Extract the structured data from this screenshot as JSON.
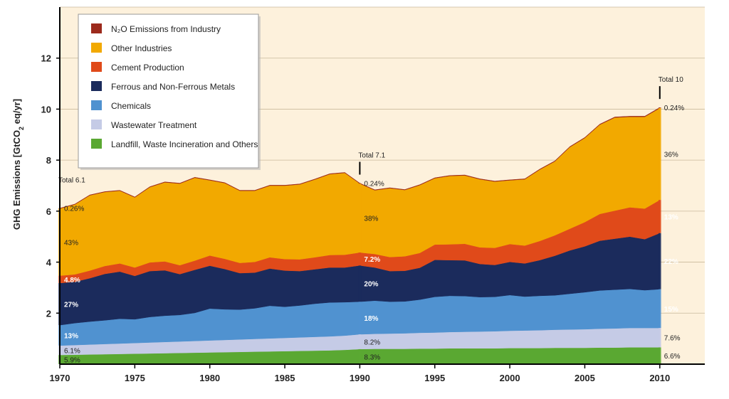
{
  "chart_data": {
    "type": "area",
    "stacked": true,
    "ylabel_prefix": "GHG Emissions [GtCO",
    "ylabel_sub": "2",
    "ylabel_suffix": " eq/yr]",
    "xlim": [
      1970,
      2013
    ],
    "ylim": [
      0,
      14
    ],
    "x_ticks": [
      1970,
      1975,
      1980,
      1985,
      1990,
      1995,
      2000,
      2005,
      2010
    ],
    "y_ticks": [
      2,
      4,
      6,
      8,
      10,
      12
    ],
    "legend_position": "top-left",
    "x": [
      1970,
      1971,
      1972,
      1973,
      1974,
      1975,
      1976,
      1977,
      1978,
      1979,
      1980,
      1981,
      1982,
      1983,
      1984,
      1985,
      1986,
      1987,
      1988,
      1989,
      1990,
      1991,
      1992,
      1993,
      1994,
      1995,
      1996,
      1997,
      1998,
      1999,
      2000,
      2001,
      2002,
      2003,
      2004,
      2005,
      2006,
      2007,
      2008,
      2009,
      2010
    ],
    "series": [
      {
        "name": "Landfill, Waste Incineration and Others",
        "color": "#5aa832",
        "values": [
          0.36,
          0.37,
          0.38,
          0.39,
          0.4,
          0.41,
          0.42,
          0.43,
          0.44,
          0.45,
          0.46,
          0.47,
          0.48,
          0.49,
          0.5,
          0.51,
          0.52,
          0.53,
          0.54,
          0.56,
          0.59,
          0.6,
          0.6,
          0.6,
          0.61,
          0.61,
          0.62,
          0.62,
          0.62,
          0.62,
          0.63,
          0.63,
          0.63,
          0.64,
          0.64,
          0.64,
          0.65,
          0.65,
          0.66,
          0.66,
          0.66
        ]
      },
      {
        "name": "Wastewater Treatment",
        "color": "#c5cbe6",
        "values": [
          0.37,
          0.38,
          0.39,
          0.4,
          0.41,
          0.42,
          0.43,
          0.44,
          0.45,
          0.46,
          0.47,
          0.48,
          0.49,
          0.5,
          0.51,
          0.52,
          0.53,
          0.54,
          0.55,
          0.56,
          0.58,
          0.59,
          0.6,
          0.61,
          0.62,
          0.63,
          0.64,
          0.65,
          0.66,
          0.67,
          0.68,
          0.69,
          0.7,
          0.71,
          0.72,
          0.73,
          0.74,
          0.75,
          0.76,
          0.76,
          0.76
        ]
      },
      {
        "name": "Chemicals",
        "color": "#5092d0",
        "values": [
          0.8,
          0.86,
          0.9,
          0.93,
          0.97,
          0.93,
          1.0,
          1.03,
          1.04,
          1.1,
          1.25,
          1.2,
          1.17,
          1.2,
          1.28,
          1.22,
          1.25,
          1.3,
          1.33,
          1.31,
          1.28,
          1.3,
          1.25,
          1.25,
          1.3,
          1.4,
          1.42,
          1.4,
          1.35,
          1.35,
          1.4,
          1.33,
          1.35,
          1.35,
          1.4,
          1.45,
          1.5,
          1.52,
          1.53,
          1.48,
          1.52
        ]
      },
      {
        "name": "Ferrous and Non-Ferrous Metals",
        "color": "#1b2b5c",
        "values": [
          1.65,
          1.62,
          1.7,
          1.82,
          1.85,
          1.7,
          1.8,
          1.78,
          1.6,
          1.69,
          1.68,
          1.58,
          1.43,
          1.4,
          1.46,
          1.42,
          1.35,
          1.35,
          1.37,
          1.36,
          1.42,
          1.3,
          1.2,
          1.2,
          1.25,
          1.45,
          1.4,
          1.4,
          1.3,
          1.25,
          1.3,
          1.3,
          1.4,
          1.55,
          1.7,
          1.8,
          1.95,
          2.0,
          2.05,
          2.0,
          2.2
        ]
      },
      {
        "name": "Cement Production",
        "color": "#e04a1a",
        "values": [
          0.29,
          0.29,
          0.3,
          0.31,
          0.32,
          0.33,
          0.34,
          0.35,
          0.35,
          0.36,
          0.4,
          0.4,
          0.4,
          0.42,
          0.44,
          0.45,
          0.46,
          0.47,
          0.49,
          0.5,
          0.51,
          0.53,
          0.55,
          0.57,
          0.58,
          0.6,
          0.62,
          0.65,
          0.65,
          0.67,
          0.7,
          0.7,
          0.75,
          0.8,
          0.85,
          0.95,
          1.05,
          1.1,
          1.15,
          1.2,
          1.3
        ]
      },
      {
        "name": "Other Industries",
        "color": "#f2a900",
        "values": [
          2.63,
          2.74,
          2.95,
          2.9,
          2.85,
          2.75,
          2.95,
          3.1,
          3.2,
          3.25,
          2.95,
          2.97,
          2.83,
          2.79,
          2.81,
          2.88,
          2.94,
          3.05,
          3.17,
          3.21,
          2.7,
          2.5,
          2.7,
          2.6,
          2.66,
          2.6,
          2.68,
          2.68,
          2.67,
          2.6,
          2.5,
          2.6,
          2.8,
          2.9,
          3.2,
          3.3,
          3.5,
          3.65,
          3.55,
          3.6,
          3.6
        ]
      },
      {
        "name": "N₂O Emissions from Industry",
        "color": "#9c2a1c",
        "values": [
          0.016,
          0.016,
          0.016,
          0.016,
          0.016,
          0.016,
          0.017,
          0.017,
          0.017,
          0.017,
          0.017,
          0.017,
          0.017,
          0.017,
          0.017,
          0.017,
          0.017,
          0.017,
          0.017,
          0.017,
          0.017,
          0.017,
          0.017,
          0.017,
          0.018,
          0.018,
          0.018,
          0.018,
          0.018,
          0.018,
          0.018,
          0.018,
          0.019,
          0.019,
          0.02,
          0.02,
          0.021,
          0.022,
          0.022,
          0.023,
          0.024
        ]
      }
    ],
    "totals": [
      {
        "year": 1970,
        "label": "Total 6.1"
      },
      {
        "year": 1990,
        "label": "Total 7.1"
      },
      {
        "year": 2010,
        "label": "Total 10"
      }
    ],
    "percent_labels": {
      "1970": [
        "5.9%",
        "6.1%",
        "13%",
        "27%",
        "4.8%",
        "43%",
        "0.26%"
      ],
      "1990": [
        "8.3%",
        "8.2%",
        "18%",
        "20%",
        "7.2%",
        "38%",
        "0.24%"
      ],
      "2010": [
        "6.6%",
        "7.6%",
        "15%",
        "22%",
        "13%",
        "36%",
        "0.24%"
      ]
    },
    "legend_order": [
      "N₂O Emissions from Industry",
      "Other Industries",
      "Cement Production",
      "Ferrous and Non-Ferrous Metals",
      "Chemicals",
      "Wastewater Treatment",
      "Landfill, Waste Incineration and Others"
    ]
  }
}
